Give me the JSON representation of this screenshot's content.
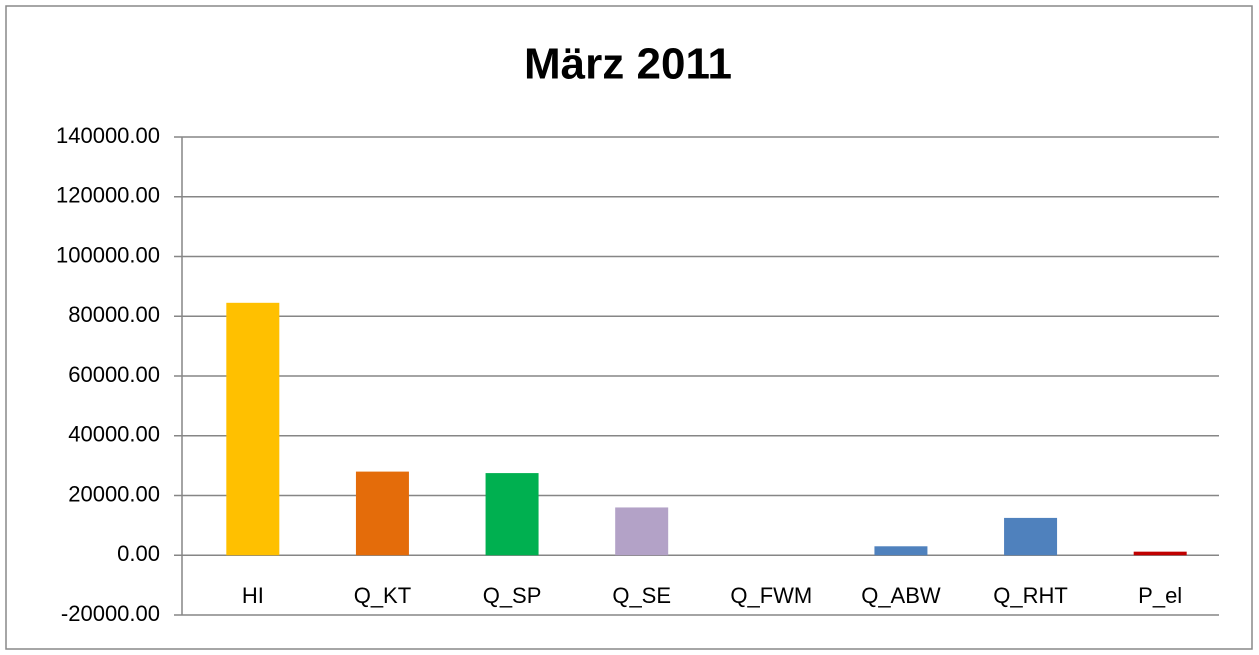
{
  "chart_data": {
    "type": "bar",
    "title": "März 2011",
    "categories": [
      "HI",
      "Q_KT",
      "Q_SP",
      "Q_SE",
      "Q_FWM",
      "Q_ABW",
      "Q_RHT",
      "P_el"
    ],
    "values": [
      84500,
      28000,
      27500,
      16000,
      0,
      3000,
      12500,
      1200
    ],
    "colors": [
      "#ffc000",
      "#e46c0a",
      "#00b050",
      "#b3a2c7",
      "#4f81bd",
      "#4f81bd",
      "#4f81bd",
      "#c00000"
    ],
    "ylim": [
      -20000,
      140000
    ],
    "yticks": [
      {
        "value": -20000,
        "label": "-20000.00"
      },
      {
        "value": 0,
        "label": "0.00"
      },
      {
        "value": 20000,
        "label": "20000.00"
      },
      {
        "value": 40000,
        "label": "40000.00"
      },
      {
        "value": 60000,
        "label": "60000.00"
      },
      {
        "value": 80000,
        "label": "80000.00"
      },
      {
        "value": 100000,
        "label": "100000.00"
      },
      {
        "value": 120000,
        "label": "120000.00"
      },
      {
        "value": 140000,
        "label": "140000.00"
      }
    ],
    "grid": true
  }
}
